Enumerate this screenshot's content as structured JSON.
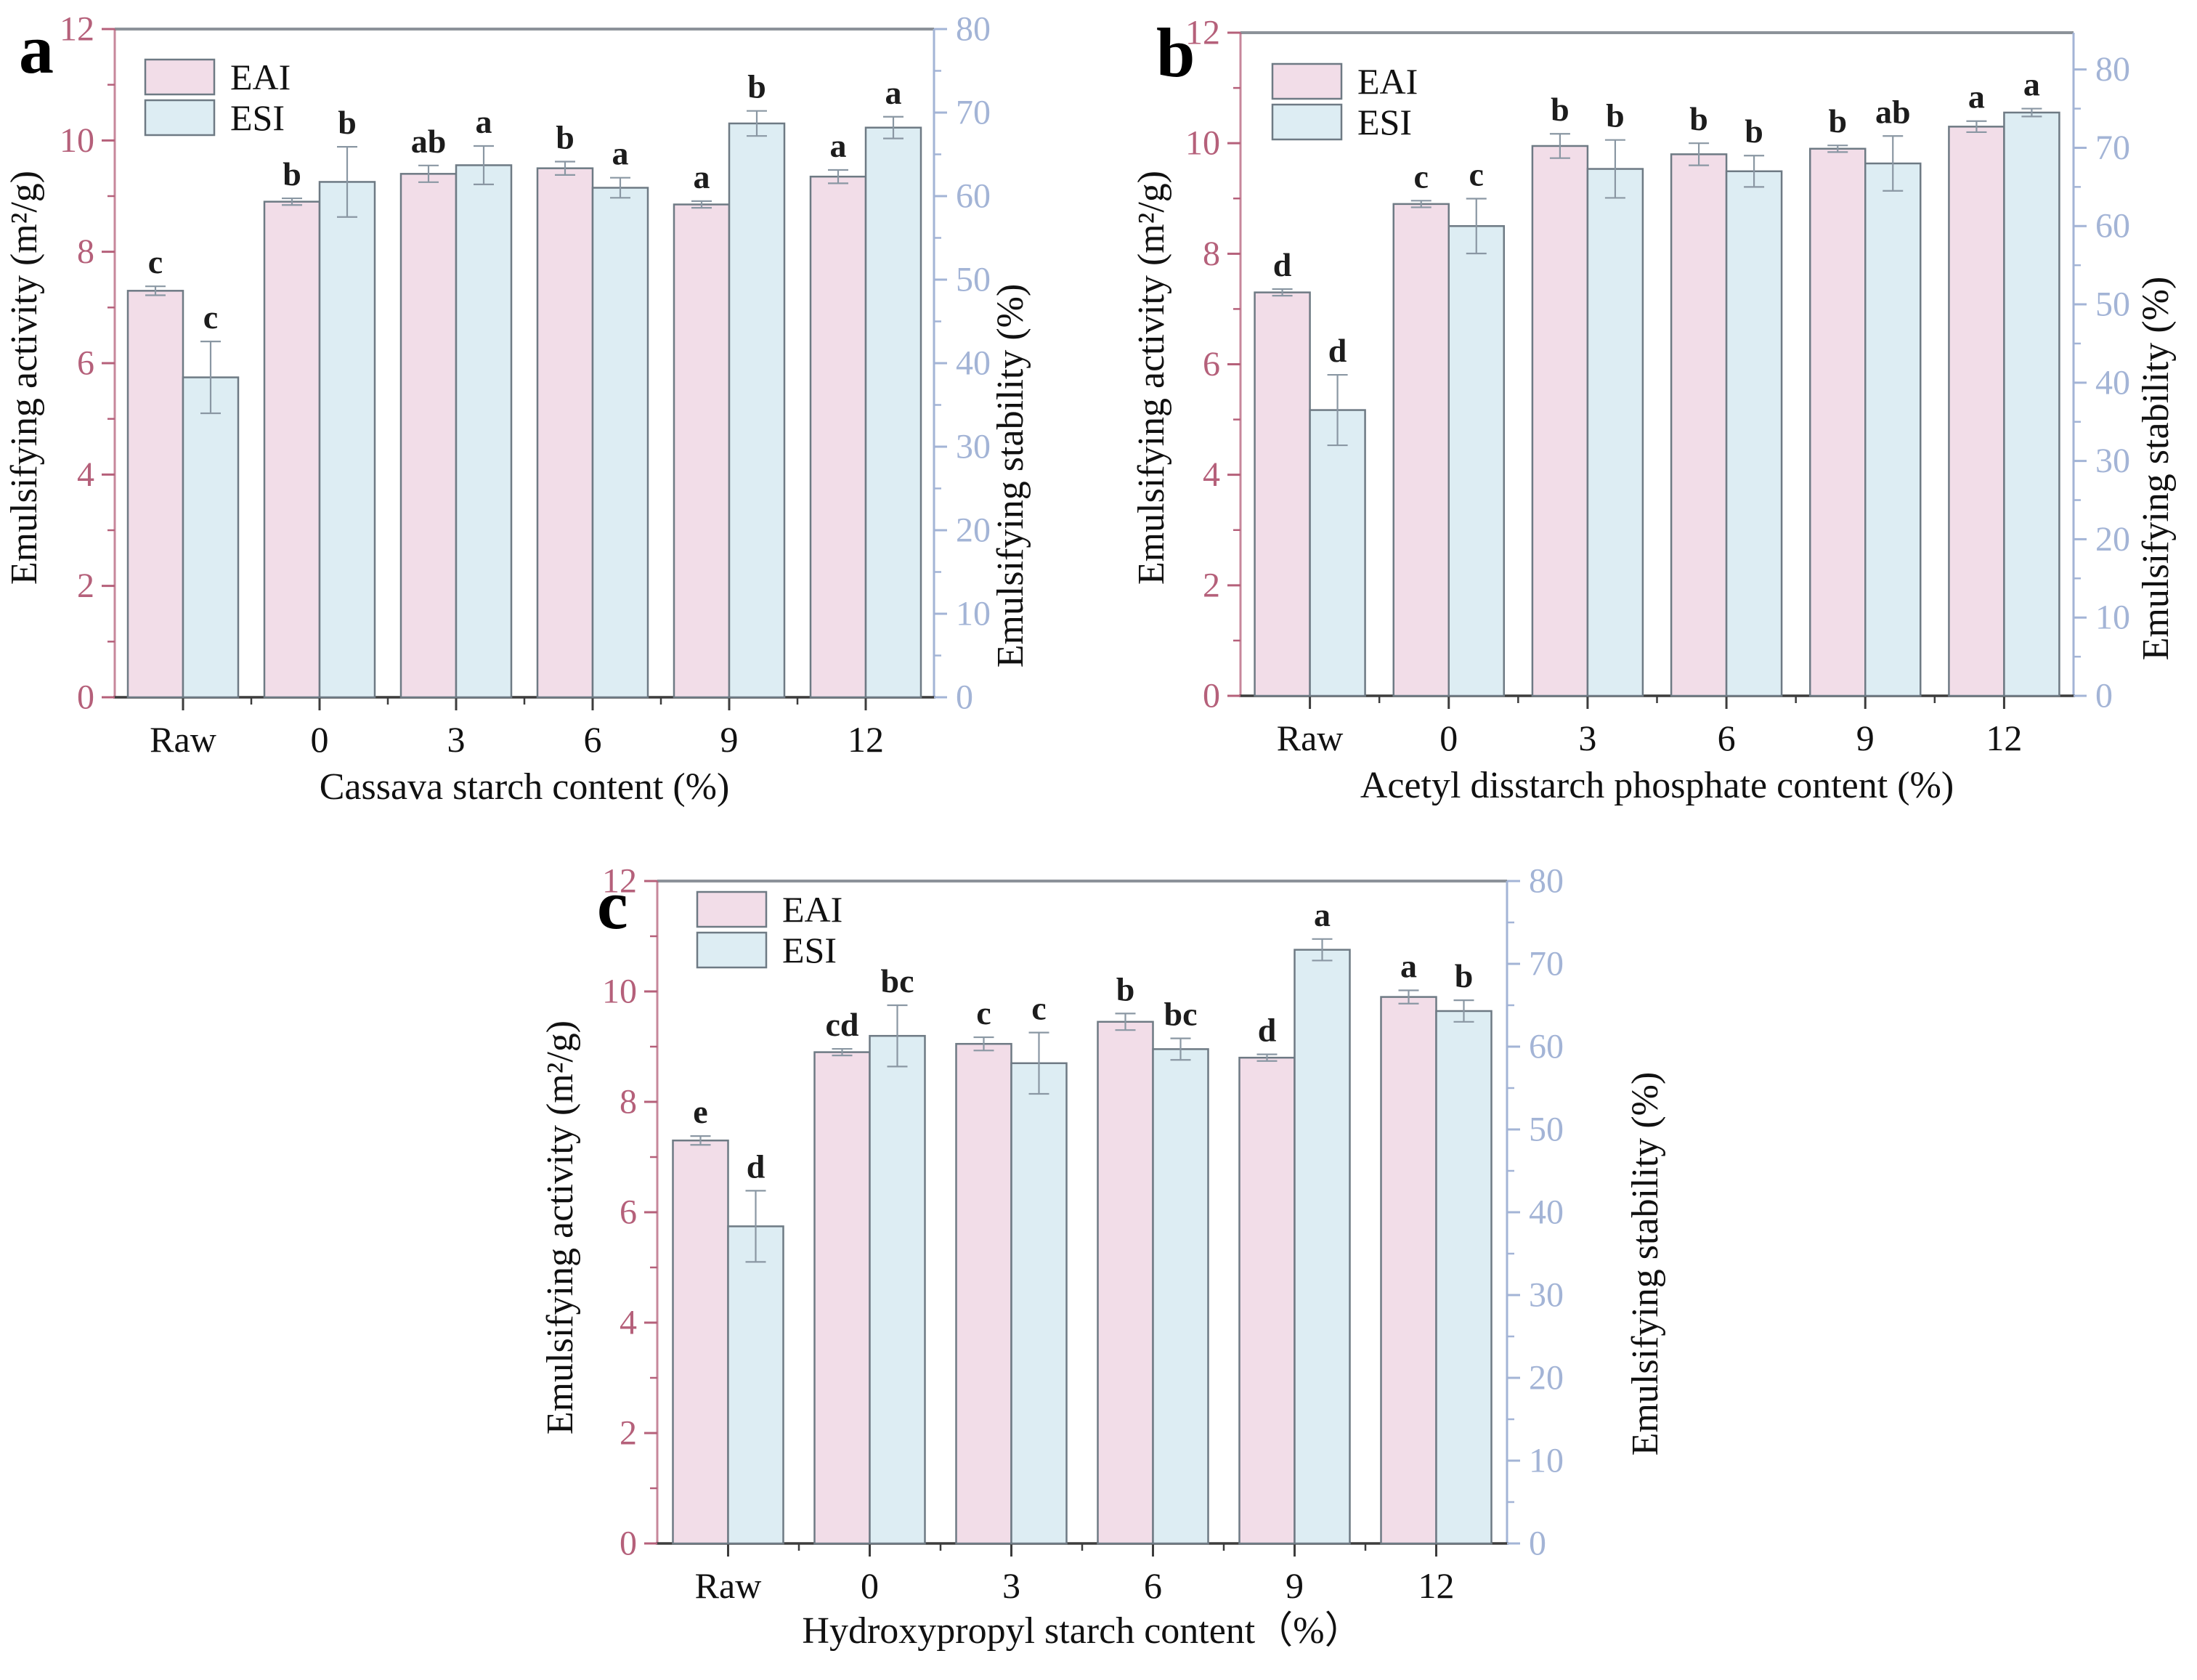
{
  "figure": {
    "background": "#ffffff",
    "colors": {
      "eai_fill": "#f2dde8",
      "esi_fill": "#ddedf3",
      "bar_edge": "#6e7a84",
      "left_axis": "#b5607a",
      "right_axis": "#a3b4d6",
      "top_frame": "#8c9299",
      "bottom_axis": "#3c3c3c",
      "error_bar": "#8a97a3",
      "letter_color": "#1c1c1c",
      "text_color": "#111111"
    },
    "legend_labels": [
      "EAI",
      "ESI"
    ]
  },
  "chart_data": [
    {
      "type": "bar",
      "panel_label": "a",
      "xlabel": "Cassava starch content (%)",
      "categories": [
        "Raw",
        "0",
        "3",
        "6",
        "9",
        "12"
      ],
      "left_axis": {
        "label": "Emulsifying activity (m²/g)",
        "min": 0,
        "max": 12,
        "major_ticks": [
          0,
          2,
          4,
          6,
          8,
          10,
          12
        ],
        "minor_step": 1
      },
      "right_axis": {
        "label": "Emulsifying stability (%)",
        "min": 0,
        "max": 80,
        "axis_top": 80,
        "major_ticks": [
          0,
          10,
          20,
          30,
          40,
          50,
          60,
          70,
          80
        ],
        "minor_step": 5
      },
      "series": [
        {
          "name": "EAI",
          "axis": "left",
          "values": [
            7.3,
            8.9,
            9.4,
            9.5,
            8.85,
            9.35
          ],
          "errors": [
            0.08,
            0.06,
            0.15,
            0.12,
            0.06,
            0.12
          ],
          "letters": [
            "c",
            "b",
            "ab",
            "b",
            "a",
            "a"
          ]
        },
        {
          "name": "ESI",
          "axis": "right",
          "values": [
            38.3,
            61.7,
            63.7,
            61.0,
            68.7,
            68.2
          ],
          "errors": [
            4.3,
            4.2,
            2.3,
            1.2,
            1.5,
            1.3
          ],
          "letters": [
            "c",
            "b",
            "a",
            "a",
            "b",
            "a"
          ]
        }
      ]
    },
    {
      "type": "bar",
      "panel_label": "b",
      "xlabel": "Acetyl disstarch phosphate content (%)",
      "categories": [
        "Raw",
        "0",
        "3",
        "6",
        "9",
        "12"
      ],
      "left_axis": {
        "label": "Emulsifying activity (m²/g)",
        "min": 0,
        "max": 12,
        "major_ticks": [
          0,
          2,
          4,
          6,
          8,
          10,
          12
        ],
        "minor_step": 1
      },
      "right_axis": {
        "label": "Emulsifying stability (%)",
        "min": 0,
        "max": 80,
        "axis_top": 84.7,
        "major_ticks": [
          0,
          10,
          20,
          30,
          40,
          50,
          60,
          70,
          80
        ],
        "minor_step": 5
      },
      "series": [
        {
          "name": "EAI",
          "axis": "left",
          "values": [
            7.3,
            8.9,
            9.95,
            9.8,
            9.9,
            10.3
          ],
          "errors": [
            0.06,
            0.06,
            0.22,
            0.2,
            0.06,
            0.1
          ],
          "letters": [
            "d",
            "c",
            "b",
            "b",
            "b",
            "a"
          ]
        },
        {
          "name": "ESI",
          "axis": "right",
          "values": [
            36.5,
            60.0,
            67.3,
            67.0,
            68.0,
            74.5
          ],
          "errors": [
            4.5,
            3.5,
            3.7,
            2.0,
            3.5,
            0.5
          ],
          "letters": [
            "d",
            "c",
            "b",
            "b",
            "ab",
            "a"
          ]
        }
      ]
    },
    {
      "type": "bar",
      "panel_label": "c",
      "xlabel": "Hydroxypropyl starch content（%）",
      "categories": [
        "Raw",
        "0",
        "3",
        "6",
        "9",
        "12"
      ],
      "left_axis": {
        "label": "Emulsifying activity (m²/g)",
        "min": 0,
        "max": 12,
        "major_ticks": [
          0,
          2,
          4,
          6,
          8,
          10,
          12
        ],
        "minor_step": 1
      },
      "right_axis": {
        "label": "Emulsifying stability (%)",
        "min": 0,
        "max": 80,
        "axis_top": 80,
        "major_ticks": [
          0,
          10,
          20,
          30,
          40,
          50,
          60,
          70,
          80
        ],
        "minor_step": 5
      },
      "series": [
        {
          "name": "EAI",
          "axis": "left",
          "values": [
            7.3,
            8.9,
            9.05,
            9.45,
            8.8,
            9.9
          ],
          "errors": [
            0.08,
            0.06,
            0.12,
            0.15,
            0.06,
            0.12
          ],
          "letters": [
            "e",
            "cd",
            "c",
            "b",
            "d",
            "a"
          ]
        },
        {
          "name": "ESI",
          "axis": "right",
          "values": [
            38.3,
            61.3,
            58.0,
            59.7,
            71.7,
            64.3
          ],
          "errors": [
            4.3,
            3.7,
            3.7,
            1.3,
            1.3,
            1.3
          ],
          "letters": [
            "d",
            "bc",
            "c",
            "bc",
            "a",
            "b"
          ]
        }
      ]
    }
  ]
}
